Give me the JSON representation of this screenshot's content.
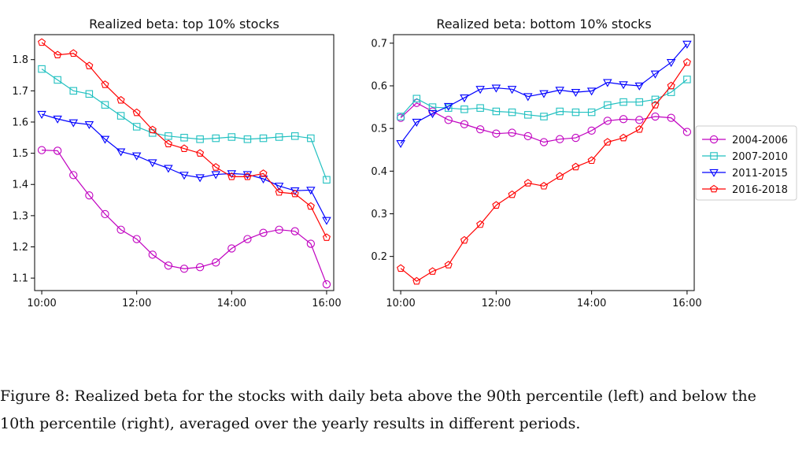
{
  "caption": "Figure 8: Realized beta for the stocks with daily beta above the 90th percentile (left) and below the 10th percentile (right), averaged over the yearly results in different periods.",
  "legend": {
    "placement": "right",
    "entries": [
      {
        "label": "2004-2006",
        "color": "#c000c0",
        "marker": "circle"
      },
      {
        "label": "2007-2010",
        "color": "#20c0c0",
        "marker": "square"
      },
      {
        "label": "2011-2015",
        "color": "#0000ff",
        "marker": "triangle-down"
      },
      {
        "label": "2016-2018",
        "color": "#ff0000",
        "marker": "pentagon"
      }
    ]
  },
  "chart_data": [
    {
      "type": "line",
      "title": "Realized beta: top 10% stocks",
      "xlabel": "",
      "ylabel": "",
      "x": [
        "10:00",
        "10:20",
        "10:40",
        "11:00",
        "11:20",
        "11:40",
        "12:00",
        "12:20",
        "12:40",
        "13:00",
        "13:20",
        "13:40",
        "14:00",
        "14:20",
        "14:40",
        "15:00",
        "15:20",
        "15:40",
        "16:00"
      ],
      "xticks": [
        "10:00",
        "12:00",
        "14:00",
        "16:00"
      ],
      "yticks": [
        "1.1",
        "1.2",
        "1.3",
        "1.4",
        "1.5",
        "1.6",
        "1.7",
        "1.8"
      ],
      "ylim": [
        1.06,
        1.88
      ],
      "grid": false,
      "series": [
        {
          "name": "2004-2006",
          "values": [
            1.51,
            1.508,
            1.43,
            1.365,
            1.305,
            1.255,
            1.225,
            1.175,
            1.14,
            1.13,
            1.135,
            1.15,
            1.195,
            1.225,
            1.245,
            1.255,
            1.25,
            1.21,
            1.08
          ]
        },
        {
          "name": "2007-2010",
          "values": [
            1.77,
            1.735,
            1.7,
            1.69,
            1.655,
            1.62,
            1.585,
            1.565,
            1.555,
            1.55,
            1.545,
            1.548,
            1.552,
            1.545,
            1.548,
            1.552,
            1.555,
            1.548,
            1.415
          ]
        },
        {
          "name": "2011-2015",
          "values": [
            1.625,
            1.61,
            1.598,
            1.592,
            1.545,
            1.505,
            1.492,
            1.47,
            1.452,
            1.43,
            1.422,
            1.432,
            1.435,
            1.432,
            1.418,
            1.395,
            1.38,
            1.382,
            1.285
          ]
        },
        {
          "name": "2016-2018",
          "values": [
            1.855,
            1.815,
            1.82,
            1.78,
            1.72,
            1.67,
            1.63,
            1.575,
            1.53,
            1.515,
            1.5,
            1.455,
            1.425,
            1.425,
            1.435,
            1.375,
            1.37,
            1.33,
            1.23
          ]
        }
      ]
    },
    {
      "type": "line",
      "title": "Realized beta: bottom 10% stocks",
      "xlabel": "",
      "ylabel": "",
      "x": [
        "10:00",
        "10:20",
        "10:40",
        "11:00",
        "11:20",
        "11:40",
        "12:00",
        "12:20",
        "12:40",
        "13:00",
        "13:20",
        "13:40",
        "14:00",
        "14:20",
        "14:40",
        "15:00",
        "15:20",
        "15:40",
        "16:00"
      ],
      "xticks": [
        "10:00",
        "12:00",
        "14:00",
        "16:00"
      ],
      "yticks": [
        "0.2",
        "0.3",
        "0.4",
        "0.5",
        "0.6",
        "0.7"
      ],
      "ylim": [
        0.12,
        0.72
      ],
      "grid": false,
      "series": [
        {
          "name": "2004-2006",
          "values": [
            0.525,
            0.56,
            0.54,
            0.52,
            0.51,
            0.498,
            0.488,
            0.49,
            0.482,
            0.468,
            0.475,
            0.478,
            0.495,
            0.518,
            0.522,
            0.52,
            0.528,
            0.525,
            0.492
          ]
        },
        {
          "name": "2007-2010",
          "values": [
            0.528,
            0.57,
            0.55,
            0.548,
            0.545,
            0.548,
            0.54,
            0.538,
            0.532,
            0.528,
            0.54,
            0.538,
            0.538,
            0.555,
            0.562,
            0.562,
            0.568,
            0.585,
            0.615
          ]
        },
        {
          "name": "2011-2015",
          "values": [
            0.465,
            0.515,
            0.535,
            0.552,
            0.572,
            0.592,
            0.595,
            0.592,
            0.575,
            0.582,
            0.59,
            0.585,
            0.588,
            0.608,
            0.603,
            0.6,
            0.628,
            0.655,
            0.698
          ]
        },
        {
          "name": "2016-2018",
          "values": [
            0.172,
            0.142,
            0.165,
            0.18,
            0.238,
            0.275,
            0.32,
            0.345,
            0.372,
            0.365,
            0.388,
            0.41,
            0.425,
            0.468,
            0.478,
            0.498,
            0.555,
            0.6,
            0.655
          ]
        }
      ]
    }
  ]
}
